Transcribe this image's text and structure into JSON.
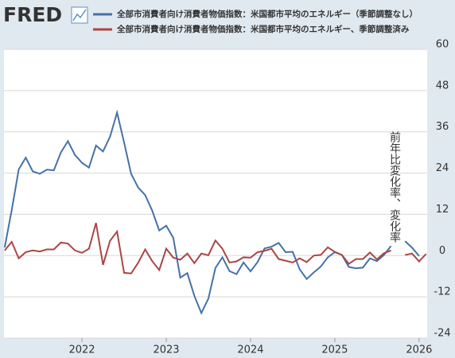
{
  "logo": "FRED",
  "chart_data": {
    "type": "line",
    "y_axis_label": "前年比変化率、変化率",
    "categories": [
      null,
      null,
      null,
      null,
      null,
      null,
      null,
      null,
      null,
      null,
      null,
      "2022",
      null,
      null,
      null,
      null,
      null,
      null,
      null,
      null,
      null,
      null,
      null,
      "2023",
      null,
      null,
      null,
      null,
      null,
      null,
      null,
      null,
      null,
      null,
      null,
      "2024",
      null,
      null,
      null,
      null,
      null,
      null,
      null,
      null,
      null,
      null,
      null,
      "2025",
      null,
      null,
      null,
      null,
      null,
      null,
      null,
      null,
      null,
      null,
      null,
      "2026",
      null
    ],
    "series": [
      {
        "name": "全部市消費者向け消費者物価指数：米国都市平均のエネルギー（季節調整なし）",
        "color": "#4572a7",
        "values": [
          2.4,
          13.2,
          25.1,
          28.5,
          24.5,
          23.8,
          25.0,
          24.8,
          30.0,
          33.3,
          29.3,
          27.0,
          25.6,
          32.0,
          30.3,
          34.6,
          41.6,
          32.9,
          23.8,
          19.8,
          17.6,
          13.1,
          7.3,
          8.7,
          5.2,
          -6.4,
          -5.1,
          -11.7,
          -16.7,
          -12.5,
          -3.6,
          -0.5,
          -4.5,
          -5.4,
          -2.0,
          -4.6,
          -1.9,
          2.1,
          2.6,
          3.7,
          1.0,
          1.1,
          -4.0,
          -6.8,
          -4.9,
          -3.2,
          -0.5,
          1.0,
          0.2,
          -3.3,
          -3.7,
          -3.5,
          -0.8,
          -1.6,
          0.2,
          2.8,
          null,
          4.2,
          2.3,
          -0.1,
          null
        ]
      },
      {
        "name": "全部市消費者向け消費者物価指数：米国都市平均のエネルギー、季節調整済み",
        "color": "#aa4643",
        "values": [
          1.5,
          4.0,
          -0.8,
          1.0,
          1.5,
          1.2,
          1.8,
          1.8,
          3.8,
          3.5,
          1.5,
          0.8,
          2.0,
          9.5,
          -2.7,
          4.3,
          7.0,
          -5.0,
          -5.2,
          -2.1,
          1.8,
          -1.6,
          -4.2,
          2.0,
          -0.6,
          -1.2,
          0.6,
          -2.2,
          0.6,
          0.1,
          4.4,
          2.0,
          -2.0,
          -1.7,
          -0.5,
          -0.6,
          1.0,
          1.4,
          2.0,
          -1.0,
          -1.5,
          -2.0,
          -0.8,
          -1.9,
          0.0,
          0.2,
          2.4,
          1.1,
          0.2,
          -2.4,
          -1.0,
          -1.0,
          0.9,
          -1.1,
          0.7,
          1.5,
          null,
          0.2,
          0.6,
          -1.7,
          0.5
        ]
      }
    ],
    "ylim": [
      -24,
      60
    ],
    "yticks": [
      -24,
      -12,
      0,
      12,
      24,
      36,
      48,
      60
    ],
    "grid": true
  }
}
